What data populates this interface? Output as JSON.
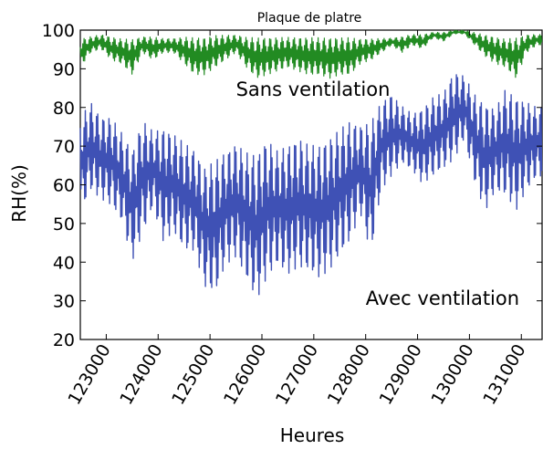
{
  "chart_data": {
    "type": "line",
    "title": "Plaque de platre",
    "xlabel": "Heures",
    "ylabel": "RH(%)",
    "xlim": [
      122500,
      131400
    ],
    "ylim": [
      20,
      100
    ],
    "grid": false,
    "x_ticks": [
      123000,
      124000,
      125000,
      126000,
      127000,
      128000,
      129000,
      130000,
      131000
    ],
    "y_ticks": [
      20,
      30,
      40,
      50,
      60,
      70,
      80,
      90,
      100
    ],
    "annotations": [
      {
        "text": "Sans ventilation",
        "x": 125500,
        "y": 83
      },
      {
        "text": "Avec ventilation",
        "x": 128000,
        "y": 29
      }
    ],
    "series": [
      {
        "color": "#228b22",
        "x": [
          122500,
          122700,
          122900,
          123100,
          123300,
          123500,
          123700,
          123900,
          124100,
          124300,
          124500,
          124700,
          124900,
          125100,
          125300,
          125500,
          125700,
          125900,
          126100,
          126300,
          126500,
          126700,
          126900,
          127100,
          127300,
          127500,
          127700,
          127900,
          128100,
          128300,
          128500,
          128700,
          128900,
          129100,
          129300,
          129500,
          129700,
          129900,
          130100,
          130300,
          130500,
          130700,
          130900,
          131100,
          131300
        ],
        "y_max": [
          98,
          98.5,
          99,
          98.5,
          98,
          98,
          98.5,
          98.5,
          98,
          98,
          98.5,
          98.5,
          98.5,
          99,
          99,
          99,
          98.5,
          98.5,
          98.5,
          98.5,
          98.5,
          98.5,
          98.5,
          98.5,
          98.5,
          98.5,
          98.5,
          98,
          98,
          98,
          98,
          98.5,
          99,
          99,
          99.5,
          99.5,
          100,
          100,
          99.5,
          99,
          98.5,
          98,
          98.5,
          99,
          99
        ],
        "y_min": [
          90,
          94,
          95,
          92,
          91,
          88,
          94,
          92,
          94,
          94,
          91,
          88,
          88,
          90,
          92,
          94,
          90,
          87,
          88,
          89,
          90,
          89,
          88,
          88,
          87,
          88,
          88,
          91,
          92,
          94,
          96,
          94,
          96,
          95,
          98,
          97,
          99,
          99,
          96,
          93,
          91,
          90,
          87,
          94,
          96
        ]
      },
      {
        "color": "#3f51b5",
        "x": [
          122500,
          122700,
          122900,
          123100,
          123300,
          123500,
          123700,
          123900,
          124100,
          124300,
          124500,
          124700,
          124900,
          125100,
          125300,
          125500,
          125700,
          125900,
          126100,
          126300,
          126500,
          126700,
          126900,
          127100,
          127300,
          127500,
          127700,
          127900,
          128100,
          128300,
          128500,
          128700,
          128900,
          129100,
          129300,
          129500,
          129700,
          129900,
          130100,
          130300,
          130500,
          130700,
          130900,
          131100,
          131300
        ],
        "y_max": [
          80,
          84,
          80,
          80,
          76,
          72,
          80,
          76,
          78,
          76,
          74,
          72,
          68,
          70,
          72,
          74,
          72,
          72,
          76,
          72,
          74,
          76,
          74,
          74,
          76,
          78,
          80,
          78,
          80,
          84,
          86,
          82,
          80,
          82,
          85,
          86,
          92,
          90,
          86,
          84,
          82,
          88,
          86,
          84,
          82
        ],
        "y_min": [
          50,
          56,
          54,
          52,
          48,
          37,
          44,
          52,
          42,
          45,
          40,
          40,
          30,
          28,
          36,
          38,
          32,
          26,
          32,
          36,
          33,
          35,
          34,
          32,
          34,
          38,
          42,
          50,
          38,
          56,
          60,
          64,
          62,
          58,
          60,
          62,
          64,
          70,
          58,
          50,
          56,
          54,
          50,
          56,
          60
        ]
      }
    ]
  }
}
